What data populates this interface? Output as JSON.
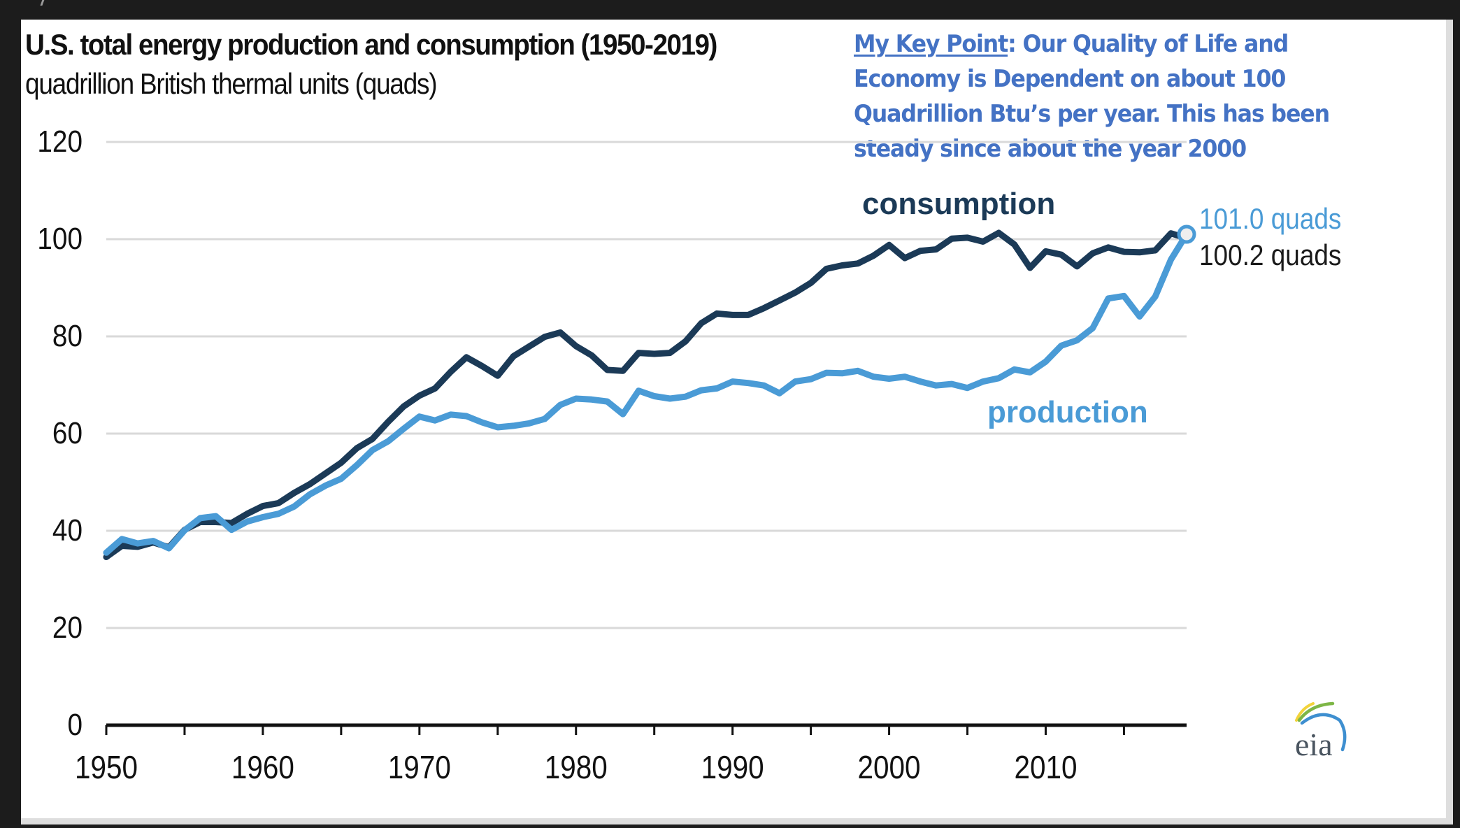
{
  "page": {
    "background_color": "#1c1c1c",
    "panel_color": "#ffffff"
  },
  "annotation": {
    "lead": "My Key Point",
    "text": ": Our Quality of Life and Economy is Dependent on about 100 Quadrillion Btu’s per year. This has been steady since about the year 2000",
    "color": "#4472C4"
  },
  "logo": {
    "text": "eia",
    "icon": "eia-logo-icon"
  },
  "chart_data": {
    "type": "line",
    "title": "U.S. total energy production and consumption (1950-2019)",
    "subtitle": "quadrillion British thermal units (quads)",
    "xlabel": "",
    "ylabel": "quadrillion British thermal units (quads)",
    "xlim": [
      1950,
      2019
    ],
    "ylim": [
      0,
      120
    ],
    "grid": true,
    "legend": "inline-labels",
    "x_ticks": [
      1950,
      1955,
      1960,
      1965,
      1970,
      1975,
      1980,
      1985,
      1990,
      1995,
      2000,
      2005,
      2010,
      2015
    ],
    "x_tick_labels": [
      "1950",
      "1960",
      "1970",
      "1980",
      "1990",
      "2000",
      "2010"
    ],
    "x_tick_label_years": [
      1950,
      1960,
      1970,
      1980,
      1990,
      2000,
      2010
    ],
    "y_ticks": [
      0,
      20,
      40,
      60,
      80,
      100,
      120
    ],
    "y_tick_labels": [
      "0",
      "20",
      "40",
      "60",
      "80",
      "100",
      "120"
    ],
    "x": [
      1950,
      1951,
      1952,
      1953,
      1954,
      1955,
      1956,
      1957,
      1958,
      1959,
      1960,
      1961,
      1962,
      1963,
      1964,
      1965,
      1966,
      1967,
      1968,
      1969,
      1970,
      1971,
      1972,
      1973,
      1974,
      1975,
      1976,
      1977,
      1978,
      1979,
      1980,
      1981,
      1982,
      1983,
      1984,
      1985,
      1986,
      1987,
      1988,
      1989,
      1990,
      1991,
      1992,
      1993,
      1994,
      1995,
      1996,
      1997,
      1998,
      1999,
      2000,
      2001,
      2002,
      2003,
      2004,
      2005,
      2006,
      2007,
      2008,
      2009,
      2010,
      2011,
      2012,
      2013,
      2014,
      2015,
      2016,
      2017,
      2018,
      2019
    ],
    "series": [
      {
        "name": "consumption",
        "label": "consumption",
        "color": "#1B3A57",
        "end_label": "100.2 quads",
        "values": [
          34.6,
          36.9,
          36.7,
          37.6,
          36.6,
          40.2,
          41.8,
          41.8,
          41.6,
          43.5,
          45.1,
          45.7,
          47.8,
          49.6,
          51.8,
          54.0,
          57.0,
          58.9,
          62.4,
          65.6,
          67.8,
          69.3,
          72.7,
          75.7,
          73.9,
          71.9,
          75.9,
          77.9,
          79.9,
          80.8,
          78.0,
          76.1,
          73.1,
          72.9,
          76.6,
          76.4,
          76.6,
          79.0,
          82.7,
          84.7,
          84.4,
          84.4,
          85.8,
          87.4,
          89.0,
          91.0,
          93.9,
          94.6,
          95.0,
          96.6,
          98.8,
          96.1,
          97.6,
          97.9,
          100.1,
          100.3,
          99.5,
          101.3,
          98.9,
          94.1,
          97.5,
          96.8,
          94.4,
          97.1,
          98.3,
          97.4,
          97.3,
          97.7,
          101.2,
          100.2
        ]
      },
      {
        "name": "production",
        "label": "production",
        "color": "#4A9BD6",
        "end_label": "101.0 quads",
        "end_marker": "circle",
        "values": [
          35.5,
          38.3,
          37.4,
          37.9,
          36.4,
          40.1,
          42.6,
          43.0,
          40.2,
          41.9,
          42.8,
          43.5,
          45.0,
          47.5,
          49.3,
          50.7,
          53.5,
          56.6,
          58.4,
          61.0,
          63.5,
          62.7,
          63.9,
          63.6,
          62.3,
          61.3,
          61.6,
          62.1,
          63.0,
          65.9,
          67.2,
          67.0,
          66.6,
          64.0,
          68.8,
          67.7,
          67.2,
          67.6,
          68.9,
          69.3,
          70.7,
          70.4,
          69.9,
          68.3,
          70.7,
          71.2,
          72.5,
          72.4,
          72.9,
          71.7,
          71.3,
          71.7,
          70.7,
          69.9,
          70.2,
          69.4,
          70.7,
          71.4,
          73.2,
          72.6,
          74.8,
          78.1,
          79.2,
          81.7,
          87.8,
          88.3,
          84.1,
          88.2,
          95.8,
          101.0
        ]
      }
    ]
  }
}
